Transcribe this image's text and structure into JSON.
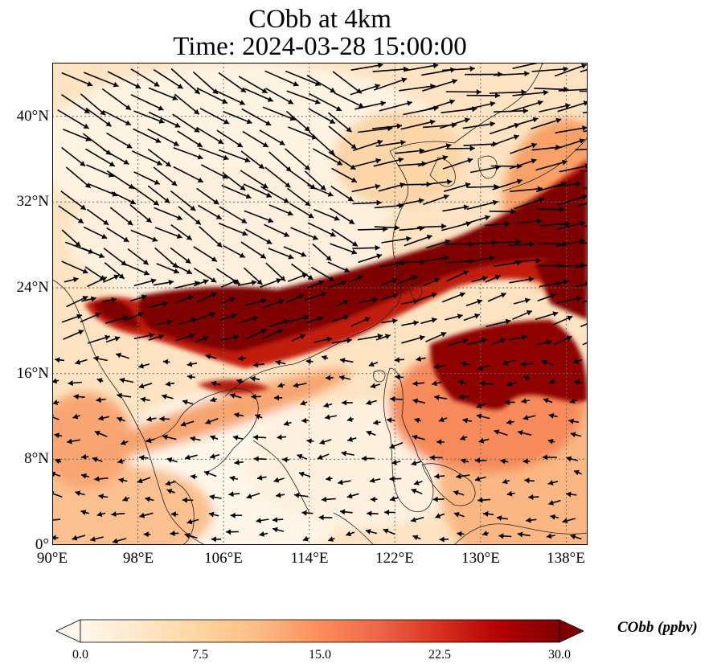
{
  "title_line1": "CObb at 4km",
  "title_line2": "Time: 2024-03-28 15:00:00",
  "map": {
    "projection": "PlateCarree",
    "lon_range": [
      90,
      140
    ],
    "lat_range": [
      0,
      45
    ],
    "gridlines": true,
    "coastlines": true
  },
  "y_ticks": [
    {
      "value": 0,
      "label": "0°"
    },
    {
      "value": 8,
      "label": "8°N"
    },
    {
      "value": 16,
      "label": "16°N"
    },
    {
      "value": 24,
      "label": "24°N"
    },
    {
      "value": 32,
      "label": "32°N"
    },
    {
      "value": 40,
      "label": "40°N"
    }
  ],
  "x_ticks": [
    {
      "value": 90,
      "label": "90°E"
    },
    {
      "value": 98,
      "label": "98°E"
    },
    {
      "value": 106,
      "label": "106°E"
    },
    {
      "value": 114,
      "label": "114°E"
    },
    {
      "value": 122,
      "label": "122°E"
    },
    {
      "value": 130,
      "label": "130°E"
    },
    {
      "value": 138,
      "label": "138°E"
    }
  ],
  "colorbar": {
    "title": "CObb (ppbv)",
    "colormap": "OrRd",
    "range": [
      0.0,
      30.0
    ],
    "extend": "both",
    "ticks": [
      "0.0",
      "7.5",
      "15.0",
      "22.5",
      "30.0"
    ],
    "colors": [
      "#fff7ec",
      "#fee8c8",
      "#fdd49e",
      "#fdbb84",
      "#fc8d59",
      "#ef6548",
      "#d7301f",
      "#b30000",
      "#7f0000"
    ]
  },
  "plume_color": "#7f0000"
}
